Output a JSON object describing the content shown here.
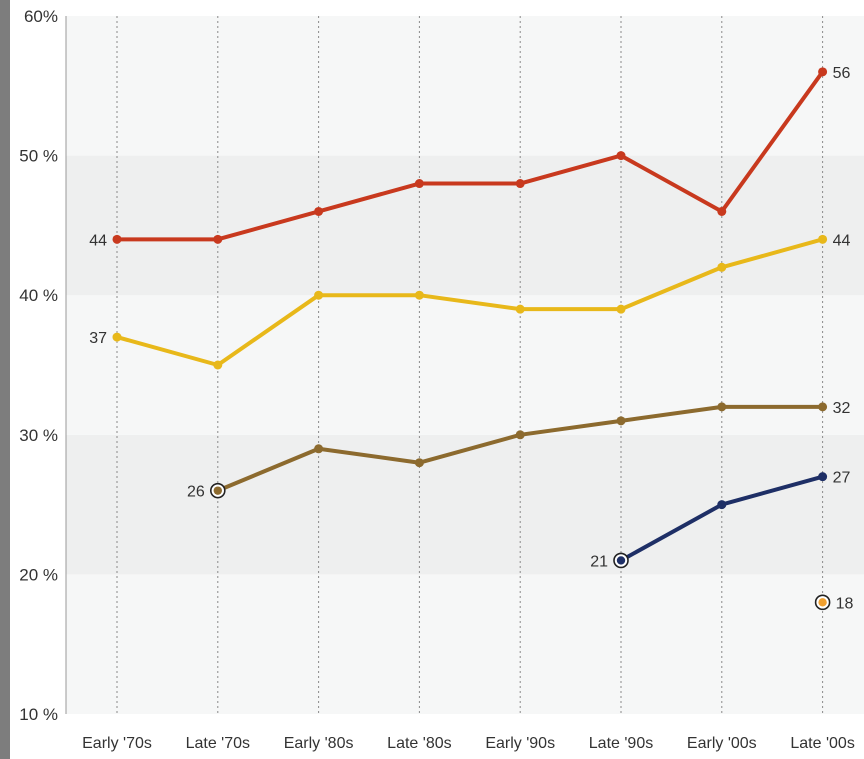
{
  "chart_data": {
    "type": "line",
    "categories": [
      "Early '70s",
      "Late '70s",
      "Early '80s",
      "Late '80s",
      "Early '90s",
      "Late '90s",
      "Early '00s",
      "Late '00s"
    ],
    "y_ticks": [
      "60%",
      "50 %",
      "40 %",
      "30 %",
      "20 %",
      "10 %"
    ],
    "y_tick_values": [
      60,
      50,
      40,
      30,
      20,
      10
    ],
    "ylim": [
      10,
      60
    ],
    "grid": "vertical dotted lines; alternating horizontal bands",
    "series": [
      {
        "color": "#c8391e",
        "values": [
          44,
          44,
          46,
          48,
          48,
          50,
          46,
          56
        ],
        "labels": [
          {
            "index": 0,
            "text": "44",
            "side": "left"
          },
          {
            "index": 7,
            "text": "56",
            "side": "right"
          }
        ]
      },
      {
        "color": "#e8b81a",
        "values": [
          37,
          35,
          40,
          40,
          39,
          39,
          42,
          44
        ],
        "labels": [
          {
            "index": 0,
            "text": "37",
            "side": "left"
          },
          {
            "index": 7,
            "text": "44",
            "side": "right"
          }
        ]
      },
      {
        "color": "#8c6a2e",
        "values": [
          null,
          26,
          29,
          28,
          30,
          31,
          32,
          32
        ],
        "labels": [
          {
            "index": 1,
            "text": "26",
            "side": "left"
          },
          {
            "index": 7,
            "text": "32",
            "side": "right"
          }
        ]
      },
      {
        "color": "#1e2f66",
        "values": [
          null,
          null,
          null,
          null,
          null,
          21,
          25,
          27
        ],
        "labels": [
          {
            "index": 5,
            "text": "21",
            "side": "left"
          },
          {
            "index": 7,
            "text": "27",
            "side": "right"
          }
        ]
      },
      {
        "color": "#f0a030",
        "values": [
          null,
          null,
          null,
          null,
          null,
          null,
          null,
          18
        ],
        "labels": [
          {
            "index": 7,
            "text": "18",
            "side": "right"
          }
        ]
      }
    ]
  }
}
